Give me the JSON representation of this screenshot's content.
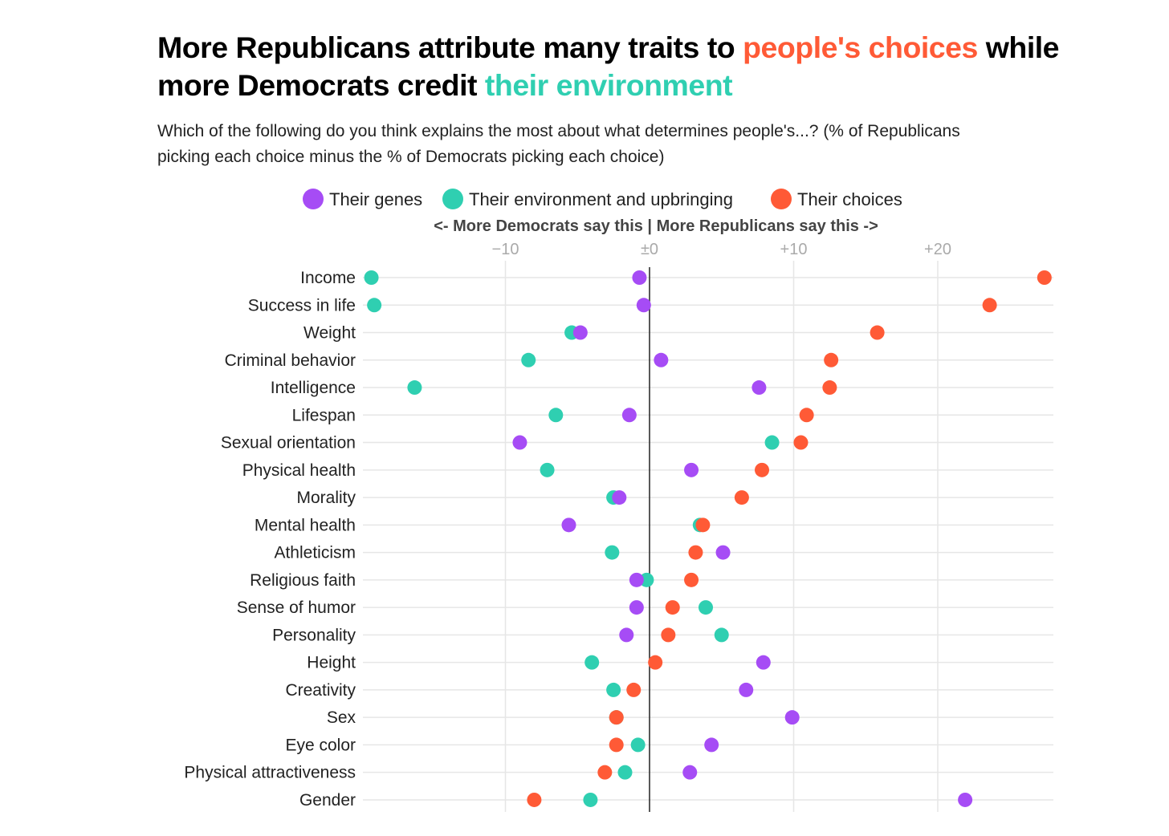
{
  "title": {
    "part1": "More Republicans attribute many traits to ",
    "part2": "people's choices",
    "part3": " while more Democrats credit ",
    "part4": "their environment"
  },
  "subtitle": "Which of the following do you think explains the most about what determines people's...? (% of Republicans picking each choice minus the % of Democrats picking each choice)",
  "chart_data": {
    "type": "scatter",
    "title": "More Republicans attribute many traits to people's choices while more Democrats credit their environment",
    "axis_title": "<- More Democrats say this | More Republicans say this ->",
    "xlim": [
      -20,
      28
    ],
    "xticks": [
      -10,
      0,
      10,
      20
    ],
    "xtick_labels": [
      "−10",
      "±0",
      "+10",
      "+20"
    ],
    "legend_position": "top-center",
    "categories": [
      "Income",
      "Success in life",
      "Weight",
      "Criminal behavior",
      "Intelligence",
      "Lifespan",
      "Sexual orientation",
      "Physical health",
      "Morality",
      "Mental health",
      "Athleticism",
      "Religious faith",
      "Sense of humor",
      "Personality",
      "Height",
      "Creativity",
      "Sex",
      "Eye color",
      "Physical attractiveness",
      "Gender"
    ],
    "series": [
      {
        "name": "Their genes",
        "color": "#a64cf5",
        "values": [
          -0.7,
          -0.4,
          -4.8,
          0.8,
          7.6,
          -1.4,
          -9.0,
          2.9,
          -2.1,
          -5.6,
          5.1,
          -0.9,
          -0.9,
          -1.6,
          7.9,
          6.7,
          9.9,
          4.3,
          2.8,
          21.9
        ]
      },
      {
        "name": "Their environment and upbringing",
        "color": "#2fcfb1",
        "values": [
          -19.3,
          -19.1,
          -5.4,
          -8.4,
          -16.3,
          -6.5,
          8.5,
          -7.1,
          -2.5,
          3.5,
          -2.6,
          -0.2,
          3.9,
          5.0,
          -4.0,
          -2.5,
          -2.3,
          -0.8,
          -1.7,
          -4.1
        ]
      },
      {
        "name": "Their choices",
        "color": "#ff5a36",
        "values": [
          27.4,
          23.6,
          15.8,
          12.6,
          12.5,
          10.9,
          10.5,
          7.8,
          6.4,
          3.7,
          3.2,
          2.9,
          1.6,
          1.3,
          0.4,
          -1.1,
          -2.3,
          -2.3,
          -3.1,
          -8.0
        ]
      }
    ]
  }
}
